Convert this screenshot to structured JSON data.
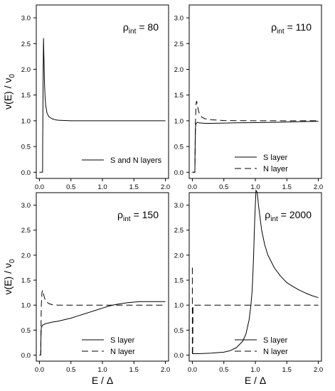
{
  "figure": {
    "ylabel": "ν(E) / ν",
    "ylabel_sub": "0",
    "xlabel": "E / Δ"
  },
  "chart_data": [
    {
      "type": "line",
      "annotation_prefix": "ρ",
      "annotation_sub": "int",
      "annotation_value": "= 80",
      "xlim": [
        -0.05,
        2.05
      ],
      "ylim": [
        -0.12,
        3.25
      ],
      "xticks": [
        0.0,
        0.5,
        1.0,
        1.5,
        2.0
      ],
      "xtick_labels": [
        "0.0",
        "0.5",
        "1.0",
        "1.5",
        "2.0"
      ],
      "yticks": [
        0.0,
        0.5,
        1.0,
        1.5,
        2.0,
        2.5,
        3.0
      ],
      "ytick_labels": [
        "0.0",
        "0.5",
        "1.0",
        "1.5",
        "2.0",
        "2.5",
        "3.0"
      ],
      "legend_position": "bottom-right",
      "series": [
        {
          "name": "S and N layers",
          "style": "solid",
          "x": [
            0.0,
            0.05,
            0.052,
            0.06,
            0.065,
            0.07,
            0.08,
            0.09,
            0.1,
            0.12,
            0.15,
            0.2,
            0.25,
            0.3,
            0.4,
            0.5,
            0.7,
            1.0,
            1.5,
            2.0
          ],
          "y": [
            0.0,
            0.0,
            0.6,
            2.0,
            2.6,
            2.3,
            1.75,
            1.45,
            1.3,
            1.15,
            1.08,
            1.04,
            1.02,
            1.01,
            1.005,
            1.0,
            1.0,
            1.0,
            1.0,
            1.0
          ]
        }
      ]
    },
    {
      "type": "line",
      "annotation_prefix": "ρ",
      "annotation_sub": "int",
      "annotation_value": "= 110",
      "xlim": [
        -0.05,
        2.05
      ],
      "ylim": [
        -0.12,
        3.25
      ],
      "xticks": [
        0.0,
        0.5,
        1.0,
        1.5,
        2.0
      ],
      "xtick_labels": [
        "0.0",
        "0.5",
        "1.0",
        "1.5",
        "2.0"
      ],
      "yticks": [
        0.0,
        0.5,
        1.0,
        1.5,
        2.0,
        2.5,
        3.0
      ],
      "ytick_labels": [
        "0.0",
        "0.5",
        "1.0",
        "1.5",
        "2.0",
        "2.5",
        "3.0"
      ],
      "legend_position": "bottom-right",
      "series": [
        {
          "name": "S layer",
          "style": "solid",
          "x": [
            0.0,
            0.04,
            0.045,
            0.05,
            0.06,
            0.08,
            0.1,
            0.15,
            0.2,
            0.3,
            0.5,
            0.7,
            1.0,
            1.3,
            1.6,
            2.0
          ],
          "y": [
            0.0,
            0.0,
            0.6,
            0.88,
            0.95,
            0.97,
            0.96,
            0.955,
            0.95,
            0.95,
            0.955,
            0.96,
            0.965,
            0.97,
            0.98,
            0.99
          ]
        },
        {
          "name": "N layer",
          "style": "dashed",
          "x": [
            0.0,
            0.04,
            0.045,
            0.05,
            0.06,
            0.07,
            0.08,
            0.1,
            0.12,
            0.15,
            0.2,
            0.3,
            0.5,
            1.0,
            1.5,
            2.0
          ],
          "y": [
            0.0,
            0.0,
            0.5,
            1.0,
            1.35,
            1.38,
            1.3,
            1.18,
            1.12,
            1.07,
            1.04,
            1.02,
            1.005,
            1.0,
            1.0,
            1.0
          ]
        }
      ]
    },
    {
      "type": "line",
      "annotation_prefix": "ρ",
      "annotation_sub": "int",
      "annotation_value": "= 150",
      "xlim": [
        -0.05,
        2.05
      ],
      "ylim": [
        -0.12,
        3.25
      ],
      "xticks": [
        0.0,
        0.5,
        1.0,
        1.5,
        2.0
      ],
      "xtick_labels": [
        "0.0",
        "0.5",
        "1.0",
        "1.5",
        "2.0"
      ],
      "yticks": [
        0.0,
        0.5,
        1.0,
        1.5,
        2.0,
        2.5,
        3.0
      ],
      "ytick_labels": [
        "0.0",
        "0.5",
        "1.0",
        "1.5",
        "2.0",
        "2.5",
        "3.0"
      ],
      "legend_position": "bottom-right",
      "series": [
        {
          "name": "S layer",
          "style": "solid",
          "x": [
            0.0,
            0.02,
            0.025,
            0.03,
            0.05,
            0.1,
            0.2,
            0.3,
            0.4,
            0.5,
            0.6,
            0.7,
            0.8,
            0.9,
            1.0,
            1.1,
            1.2,
            1.3,
            1.4,
            1.5,
            1.6,
            1.7,
            1.8,
            1.9,
            2.0
          ],
          "y": [
            0.0,
            0.0,
            0.4,
            0.55,
            0.6,
            0.63,
            0.66,
            0.68,
            0.71,
            0.74,
            0.78,
            0.82,
            0.86,
            0.9,
            0.94,
            0.98,
            1.01,
            1.03,
            1.05,
            1.06,
            1.07,
            1.07,
            1.07,
            1.07,
            1.07
          ]
        },
        {
          "name": "N layer",
          "style": "dashed",
          "x": [
            0.0,
            0.02,
            0.025,
            0.03,
            0.04,
            0.05,
            0.06,
            0.08,
            0.1,
            0.15,
            0.2,
            0.3,
            0.5,
            1.0,
            1.5,
            2.0
          ],
          "y": [
            0.0,
            0.0,
            0.5,
            1.0,
            1.25,
            1.3,
            1.25,
            1.15,
            1.08,
            1.03,
            1.01,
            1.0,
            1.0,
            1.0,
            1.0,
            1.0
          ]
        }
      ]
    },
    {
      "type": "line",
      "annotation_prefix": "ρ",
      "annotation_sub": "int",
      "annotation_value": "= 2000",
      "xlim": [
        -0.05,
        2.05
      ],
      "ylim": [
        -0.12,
        3.25
      ],
      "xticks": [
        0.0,
        0.5,
        1.0,
        1.5,
        2.0
      ],
      "xtick_labels": [
        "0.0",
        "0.5",
        "1.0",
        "1.5",
        "2.0"
      ],
      "yticks": [
        0.0,
        0.5,
        1.0,
        1.5,
        2.0,
        2.5,
        3.0
      ],
      "ytick_labels": [
        "0.0",
        "0.5",
        "1.0",
        "1.5",
        "2.0",
        "2.5",
        "3.0"
      ],
      "legend_position": "bottom-right",
      "series": [
        {
          "name": "S layer",
          "style": "solid",
          "x": [
            0.0,
            0.1,
            0.2,
            0.3,
            0.4,
            0.5,
            0.6,
            0.7,
            0.8,
            0.85,
            0.9,
            0.93,
            0.95,
            0.97,
            0.99,
            1.01,
            1.03,
            1.05,
            1.08,
            1.1,
            1.15,
            1.2,
            1.3,
            1.4,
            1.5,
            1.6,
            1.7,
            1.8,
            1.9,
            2.0
          ],
          "y": [
            0.03,
            0.03,
            0.035,
            0.04,
            0.05,
            0.06,
            0.09,
            0.15,
            0.28,
            0.42,
            0.7,
            1.0,
            1.3,
            1.9,
            2.7,
            3.3,
            3.25,
            3.0,
            2.7,
            2.5,
            2.2,
            2.0,
            1.75,
            1.58,
            1.45,
            1.37,
            1.3,
            1.24,
            1.19,
            1.15
          ]
        },
        {
          "name": "N layer",
          "style": "dashed",
          "x": [
            0.0,
            0.0,
            0.005,
            0.01,
            0.02,
            0.5,
            1.0,
            1.5,
            2.0
          ],
          "y": [
            1.75,
            0.0,
            0.0,
            1.0,
            1.0,
            1.0,
            1.0,
            1.0,
            1.0
          ]
        }
      ]
    }
  ]
}
